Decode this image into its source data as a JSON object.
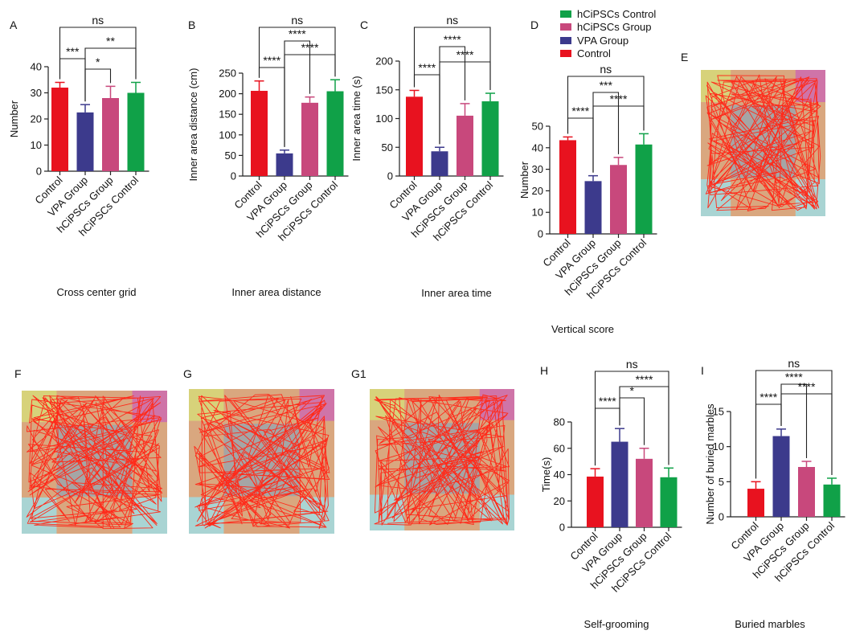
{
  "colors": {
    "control": "#e8121f",
    "vpa": "#3c3a8c",
    "hcipsc_group": "#c8487c",
    "hcipsc_control": "#10a148",
    "trace": "#ff2a1a",
    "zone_gray": "#a5a5a5",
    "zone_tan": "#d9a77f",
    "zone_yellow": "#d7d27a",
    "zone_pink": "#cf74a8",
    "zone_cyan": "#a9d4d3"
  },
  "legend": {
    "items": [
      {
        "label": "hCiPSCs Control",
        "color_key": "hcipsc_control"
      },
      {
        "label": "hCiPSCs Group",
        "color_key": "hcipsc_group"
      },
      {
        "label": "VPA Group",
        "color_key": "vpa"
      },
      {
        "label": "Control",
        "color_key": "control"
      }
    ]
  },
  "maps": [
    {
      "letter": "E"
    },
    {
      "letter": "F"
    },
    {
      "letter": "G"
    },
    {
      "letter": "G1"
    }
  ],
  "chart_data": [
    {
      "letter": "A",
      "type": "bar",
      "title": "Cross center grid",
      "ylabel": "Number",
      "categories": [
        "Control",
        "VPA Group",
        "hCiPSCs Group",
        "hCiPSCs Control"
      ],
      "values": [
        32,
        22.5,
        28,
        30
      ],
      "errors": [
        2,
        3,
        4.5,
        4
      ],
      "ylim": [
        0,
        40
      ],
      "yticks": [
        0,
        10,
        20,
        30,
        40
      ],
      "significance": [
        {
          "from": 0,
          "to": 1,
          "label": "***"
        },
        {
          "from": 1,
          "to": 2,
          "label": "*"
        },
        {
          "from": 1,
          "to": 3,
          "label": "**"
        },
        {
          "from": 0,
          "to": 3,
          "label": "ns"
        }
      ]
    },
    {
      "letter": "B",
      "type": "bar",
      "title": "Inner area distance",
      "ylabel": "Inner area distance    (cm)",
      "categories": [
        "Control",
        "VPA Group",
        "hCiPSCs Group",
        "hCiPSCs Control"
      ],
      "values": [
        207,
        55,
        178,
        206
      ],
      "errors": [
        24,
        8,
        14,
        28
      ],
      "ylim": [
        0,
        250
      ],
      "yticks": [
        0,
        50,
        100,
        150,
        200,
        250
      ],
      "significance": [
        {
          "from": 0,
          "to": 1,
          "label": "****"
        },
        {
          "from": 1,
          "to": 3,
          "label": "****"
        },
        {
          "from": 1,
          "to": 2,
          "label": "****"
        },
        {
          "from": 0,
          "to": 3,
          "label": "ns"
        }
      ]
    },
    {
      "letter": "C",
      "type": "bar",
      "title": "Inner area time",
      "ylabel": "Inner area time     (s)",
      "categories": [
        "Control",
        "VPA Group",
        "hCiPSCs Group",
        "hCiPSCs Control"
      ],
      "values": [
        138,
        43,
        105,
        130
      ],
      "errors": [
        11,
        7,
        21,
        14
      ],
      "ylim": [
        0,
        200
      ],
      "yticks": [
        0,
        50,
        100,
        150,
        200
      ],
      "significance": [
        {
          "from": 0,
          "to": 1,
          "label": "****"
        },
        {
          "from": 1,
          "to": 3,
          "label": "****"
        },
        {
          "from": 1,
          "to": 2,
          "label": "****"
        },
        {
          "from": 0,
          "to": 3,
          "label": "ns"
        }
      ]
    },
    {
      "letter": "D",
      "type": "bar",
      "title": "Vertical score",
      "ylabel": "Number",
      "categories": [
        "Control",
        "VPA Group",
        "hCiPSCs Group",
        "hCiPSCs Control"
      ],
      "values": [
        43.5,
        24.5,
        32,
        41.5
      ],
      "errors": [
        1.5,
        2.5,
        3.5,
        5
      ],
      "ylim": [
        0,
        50
      ],
      "yticks": [
        0,
        10,
        20,
        30,
        40,
        50
      ],
      "significance": [
        {
          "from": 0,
          "to": 1,
          "label": "****"
        },
        {
          "from": 1,
          "to": 3,
          "label": "****"
        },
        {
          "from": 1,
          "to": 2,
          "label": "***"
        },
        {
          "from": 0,
          "to": 3,
          "label": "ns"
        }
      ]
    },
    {
      "letter": "H",
      "type": "bar",
      "title": "Self-grooming",
      "ylabel": "Time(s)",
      "categories": [
        "Control",
        "VPA Group",
        "hCiPSCs Group",
        "hCiPSCs Control"
      ],
      "values": [
        38.5,
        65,
        52,
        38
      ],
      "errors": [
        6,
        10,
        8,
        7
      ],
      "ylim": [
        0,
        80
      ],
      "yticks": [
        0,
        20,
        40,
        60,
        80
      ],
      "significance": [
        {
          "from": 0,
          "to": 1,
          "label": "****"
        },
        {
          "from": 1,
          "to": 2,
          "label": "*"
        },
        {
          "from": 1,
          "to": 3,
          "label": "****"
        },
        {
          "from": 0,
          "to": 3,
          "label": "ns"
        }
      ]
    },
    {
      "letter": "I",
      "type": "bar",
      "title": "Buried marbles",
      "ylabel": "Number of buried marbles",
      "categories": [
        "Control",
        "VPA Group",
        "hCiPSCs Group",
        "hCiPSCs Control"
      ],
      "values": [
        4,
        11.5,
        7.1,
        4.6
      ],
      "errors": [
        1,
        1,
        0.8,
        0.9
      ],
      "ylim": [
        0,
        15
      ],
      "yticks": [
        0,
        5,
        10,
        15
      ],
      "significance": [
        {
          "from": 0,
          "to": 1,
          "label": "****"
        },
        {
          "from": 1,
          "to": 3,
          "label": "****"
        },
        {
          "from": 1,
          "to": 2,
          "label": "****"
        },
        {
          "from": 0,
          "to": 3,
          "label": "ns"
        }
      ]
    }
  ]
}
